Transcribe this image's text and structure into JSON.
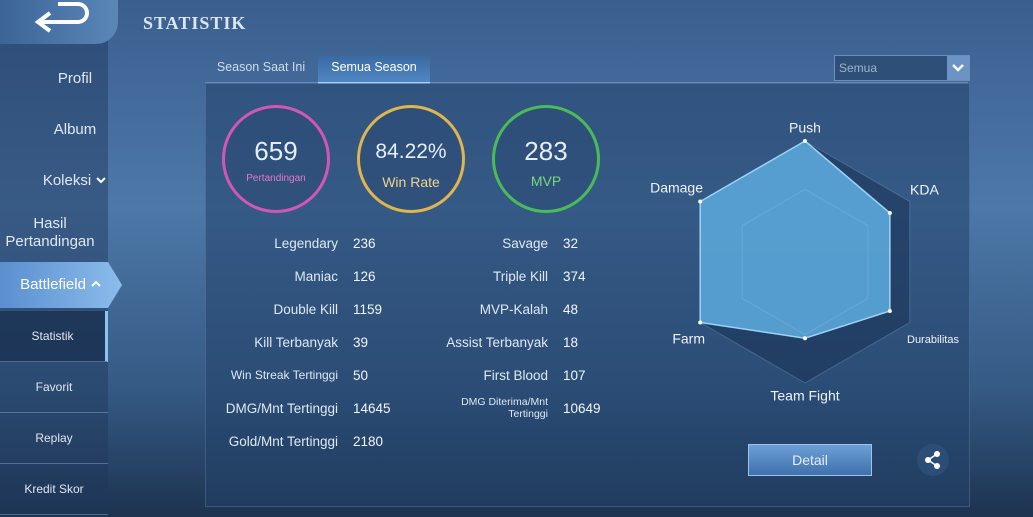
{
  "header": {
    "title": "STATISTIK"
  },
  "sidebar": {
    "items": [
      "Profil",
      "Album",
      "Koleksi",
      "Hasil Pertandingan",
      "Battlefield"
    ],
    "subitems": [
      "Statistik",
      "Favorit",
      "Replay",
      "Kredit Skor"
    ]
  },
  "tabs": [
    "Season Saat Ini",
    "Semua Season"
  ],
  "dropdown": "Semua",
  "summary": [
    {
      "value": "659",
      "label": "Pertandingan"
    },
    {
      "value": "84.22%",
      "label": "Win Rate"
    },
    {
      "value": "283",
      "label": "MVP"
    }
  ],
  "stats": {
    "left": [
      {
        "label": "Legendary",
        "value": "236"
      },
      {
        "label": "Maniac",
        "value": "126"
      },
      {
        "label": "Double Kill",
        "value": "1159"
      },
      {
        "label": "Kill Terbanyak",
        "value": "39"
      },
      {
        "label": "Win Streak Tertinggi",
        "value": "50"
      },
      {
        "label": "DMG/Mnt Tertinggi",
        "value": "14645"
      },
      {
        "label": "Gold/Mnt Tertinggi",
        "value": "2180"
      }
    ],
    "right": [
      {
        "label": "Savage",
        "value": "32"
      },
      {
        "label": "Triple Kill",
        "value": "374"
      },
      {
        "label": "MVP-Kalah",
        "value": "48"
      },
      {
        "label": "Assist Terbanyak",
        "value": "18"
      },
      {
        "label": "First Blood",
        "value": "107"
      },
      {
        "label": "DMG Diterima/Mnt Tertinggi",
        "value": "10649"
      }
    ]
  },
  "chart_data": {
    "type": "radar",
    "axes": [
      "Push",
      "KDA",
      "Durabilitas",
      "Team Fight",
      "Farm",
      "Damage"
    ],
    "values": [
      100,
      81,
      81,
      63,
      100,
      100
    ],
    "rlim": [
      0,
      100
    ],
    "color": "#5eaee0"
  },
  "buttons": {
    "detail": "Detail"
  }
}
